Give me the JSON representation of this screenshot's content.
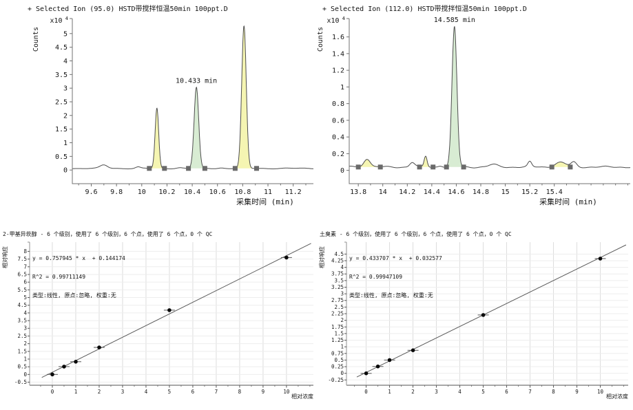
{
  "page": {
    "background": "#ffffff"
  },
  "chart_data": [
    {
      "id": "chromatogram-95",
      "type": "line",
      "subtype": "chromatogram",
      "title": "+ Selected Ion (95.0) HSTD带搅拌恒温50min 100ppt.D",
      "ylabel": "Counts",
      "y_exponent_base": "x10",
      "y_exponent_power": "4",
      "xlabel": "采集时间 (min)",
      "xlim": [
        9.45,
        11.36
      ],
      "ylim": [
        -0.5,
        5.55
      ],
      "x_minor_step": 0.1,
      "yticks": [
        {
          "v": 0,
          "label": "0"
        },
        {
          "v": 0.5,
          "label": "0.5"
        },
        {
          "v": 1,
          "label": "1"
        },
        {
          "v": 1.5,
          "label": "1.5"
        },
        {
          "v": 2,
          "label": "2"
        },
        {
          "v": 2.5,
          "label": "2.5"
        },
        {
          "v": 3,
          "label": "3"
        },
        {
          "v": 3.5,
          "label": "3.5"
        },
        {
          "v": 4,
          "label": "4"
        },
        {
          "v": 4.5,
          "label": "4.5"
        },
        {
          "v": 5,
          "label": "5"
        }
      ],
      "xticks": [
        {
          "v": 9.6,
          "label": "9.6"
        },
        {
          "v": 9.8,
          "label": "9.8"
        },
        {
          "v": 10,
          "label": "10"
        },
        {
          "v": 10.2,
          "label": "10.2"
        },
        {
          "v": 10.4,
          "label": "10.4"
        },
        {
          "v": 10.6,
          "label": "10.6"
        },
        {
          "v": 10.8,
          "label": "10.8"
        },
        {
          "v": 11,
          "label": "11"
        },
        {
          "v": 11.2,
          "label": "11.2"
        }
      ],
      "baseline": 0.06,
      "noise": [
        {
          "a": 0.012,
          "f": 2.6,
          "p": 0.7
        },
        {
          "a": 0.007,
          "f": 6.1,
          "p": 2.3
        }
      ],
      "bumps": [
        {
          "t": 9.7,
          "h": 0.12,
          "s": 0.028
        },
        {
          "t": 9.97,
          "h": 0.05,
          "s": 0.018
        },
        {
          "t": 10.3,
          "h": 0.025,
          "s": 0.025
        },
        {
          "t": 10.63,
          "h": 0.02,
          "s": 0.02
        }
      ],
      "peaks": [
        {
          "rt": 10.12,
          "height": 2.2,
          "sigma": 0.014,
          "start": 10.06,
          "end": 10.18,
          "fill": "#f5f5b2",
          "label": null
        },
        {
          "rt": 10.433,
          "height": 2.96,
          "sigma": 0.018,
          "start": 10.37,
          "end": 10.5,
          "fill": "#d8ecd3",
          "label": "10.433 min"
        },
        {
          "rt": 10.81,
          "height": 5.2,
          "sigma": 0.018,
          "start": 10.74,
          "end": 10.91,
          "fill": "#f5f5b2",
          "label": null
        }
      ],
      "colors": {
        "trace": "#4d4d4d",
        "marker": "#6a6a6a",
        "axis": "#707070",
        "yellow_fill": "#f5f5b2",
        "green_fill": "#d8ecd3"
      }
    },
    {
      "id": "chromatogram-112",
      "type": "line",
      "subtype": "chromatogram",
      "title": "+ Selected Ion (112.0) HSTD带搅拌恒温50min 100ppt.D",
      "ylabel": "Counts",
      "y_exponent_base": "x10",
      "y_exponent_power": "4",
      "xlabel": "采集时间 (min)",
      "xlim": [
        13.726,
        16.02
      ],
      "ylim": [
        -0.16,
        1.82
      ],
      "x_minor_step": 0.1,
      "yticks": [
        {
          "v": 0,
          "label": "0"
        },
        {
          "v": 0.2,
          "label": "0.2"
        },
        {
          "v": 0.4,
          "label": "0.4"
        },
        {
          "v": 0.6,
          "label": "0.6"
        },
        {
          "v": 0.8,
          "label": "0.8"
        },
        {
          "v": 1,
          "label": "1"
        },
        {
          "v": 1.2,
          "label": "1.2"
        },
        {
          "v": 1.4,
          "label": "1.4"
        },
        {
          "v": 1.6,
          "label": "1.6"
        }
      ],
      "xticks": [
        {
          "v": 13.8,
          "label": "13.8"
        },
        {
          "v": 14,
          "label": "14"
        },
        {
          "v": 14.2,
          "label": "14.2"
        },
        {
          "v": 14.4,
          "label": "14.4"
        },
        {
          "v": 14.6,
          "label": "14.6"
        },
        {
          "v": 14.8,
          "label": "14.8"
        },
        {
          "v": 15,
          "label": "15"
        },
        {
          "v": 15.2,
          "label": "15.2"
        },
        {
          "v": 15.4,
          "label": "15.4"
        }
      ],
      "baseline": 0.04,
      "noise": [
        {
          "a": 0.007,
          "f": 3.3,
          "p": 0.4
        },
        {
          "a": 0.004,
          "f": 7.9,
          "p": 1.8
        }
      ],
      "bumps": [
        {
          "t": 13.74,
          "h": 0.01,
          "s": 0.02
        },
        {
          "t": 14.24,
          "h": 0.055,
          "s": 0.02
        },
        {
          "t": 14.47,
          "h": 0.018,
          "s": 0.018
        },
        {
          "t": 14.9,
          "h": 0.028,
          "s": 0.035
        },
        {
          "t": 15.2,
          "h": 0.06,
          "s": 0.015
        },
        {
          "t": 15.56,
          "h": 0.055,
          "s": 0.022
        }
      ],
      "peaks": [
        {
          "rt": 13.87,
          "height": 0.1,
          "sigma": 0.026,
          "start": 13.8,
          "end": 13.98,
          "fill": "#f5f5b2",
          "label": null
        },
        {
          "rt": 14.35,
          "height": 0.13,
          "sigma": 0.012,
          "start": 14.3,
          "end": 14.41,
          "fill": "#f5f5b2",
          "label": null
        },
        {
          "rt": 14.585,
          "height": 1.68,
          "sigma": 0.02,
          "start": 14.52,
          "end": 14.66,
          "fill": "#d8ecd3",
          "label": "14.585 min"
        },
        {
          "rt": 15.45,
          "height": 0.055,
          "sigma": 0.045,
          "start": 15.38,
          "end": 15.53,
          "fill": "#f5f5b2",
          "label": null
        }
      ],
      "colors": {
        "trace": "#4d4d4d",
        "marker": "#6a6a6a",
        "axis": "#707070",
        "yellow_fill": "#f5f5b2",
        "green_fill": "#d8ecd3"
      }
    },
    {
      "id": "calibration-2mib",
      "type": "scatter",
      "title": "2-甲基异莰醇 - 6 个级别，使用了 6 个级别，6 个点，使用了 6 个点，0 个 QC",
      "fit_equation": "y = 0.757945 * x  + 0.144174",
      "fit_r2": "R^2 = 0.99711149",
      "fit_type": "类型:线性, 原点:忽略, 权重:无",
      "slope": 0.757945,
      "intercept": 0.144174,
      "xlabel": "相对浓度",
      "ylabel": "相对响应",
      "xlim": [
        -0.97,
        11.15
      ],
      "ylim": [
        -0.7,
        8.6
      ],
      "x_minor_step": 0.5,
      "line_x": [
        -0.45,
        11.05
      ],
      "yticks": [
        {
          "v": -0.5,
          "label": "-0.5"
        },
        {
          "v": 0,
          "label": "0"
        },
        {
          "v": 0.5,
          "label": "0.5"
        },
        {
          "v": 1,
          "label": "1"
        },
        {
          "v": 1.5,
          "label": "1.5"
        },
        {
          "v": 2,
          "label": "2"
        },
        {
          "v": 2.5,
          "label": "2.5"
        },
        {
          "v": 3,
          "label": "3"
        },
        {
          "v": 3.5,
          "label": "3.5"
        },
        {
          "v": 4,
          "label": "4"
        },
        {
          "v": 4.5,
          "label": "4.5"
        },
        {
          "v": 5,
          "label": "5"
        },
        {
          "v": 5.5,
          "label": "5.5"
        },
        {
          "v": 6,
          "label": "6"
        },
        {
          "v": 6.5,
          "label": "6.5"
        },
        {
          "v": 7,
          "label": "7"
        },
        {
          "v": 7.5,
          "label": "7.5"
        },
        {
          "v": 8,
          "label": "8"
        }
      ],
      "xticks": [
        {
          "v": 0,
          "label": "0"
        },
        {
          "v": 1,
          "label": "1"
        },
        {
          "v": 2,
          "label": "2"
        },
        {
          "v": 3,
          "label": "3"
        },
        {
          "v": 4,
          "label": "4"
        },
        {
          "v": 5,
          "label": "5"
        },
        {
          "v": 6,
          "label": "6"
        },
        {
          "v": 7,
          "label": "7"
        },
        {
          "v": 8,
          "label": "8"
        },
        {
          "v": 9,
          "label": "9"
        },
        {
          "v": 10,
          "label": "10"
        }
      ],
      "points": [
        [
          0,
          0.0
        ],
        [
          0.5,
          0.51
        ],
        [
          1,
          0.83
        ],
        [
          2,
          1.76
        ],
        [
          5,
          4.18
        ],
        [
          10,
          7.6
        ]
      ],
      "colors": {
        "line": "#5a5a5a",
        "point": "#0a0a0a",
        "grid_v": "#dcdcdc",
        "grid_h": "#ededed"
      }
    },
    {
      "id": "calibration-geosmin",
      "type": "scatter",
      "title": "土臭素 - 6 个级别，使用了 6 个级别，6 个点，使用了 6 个点，0 个 QC",
      "fit_equation": "y = 0.433707 * x  + 0.032577",
      "fit_r2": "R^2 = 0.99947109",
      "fit_type": "类型:线性, 原点:忽略, 权重:无",
      "slope": 0.433707,
      "intercept": 0.032577,
      "xlabel": "相对浓度",
      "ylabel": "相对响应",
      "xlim": [
        -0.84,
        11.19
      ],
      "ylim": [
        -0.45,
        4.95
      ],
      "x_minor_step": 0.5,
      "line_x": [
        -0.4,
        11.1
      ],
      "yticks": [
        {
          "v": -0.25,
          "label": "-0.25"
        },
        {
          "v": 0,
          "label": "0"
        },
        {
          "v": 0.25,
          "label": "0.25"
        },
        {
          "v": 0.5,
          "label": "0.5"
        },
        {
          "v": 0.75,
          "label": "0.75"
        },
        {
          "v": 1,
          "label": "1"
        },
        {
          "v": 1.25,
          "label": "1.25"
        },
        {
          "v": 1.5,
          "label": "1.5"
        },
        {
          "v": 1.75,
          "label": "1.75"
        },
        {
          "v": 2,
          "label": "2"
        },
        {
          "v": 2.25,
          "label": "2.25"
        },
        {
          "v": 2.5,
          "label": "2.5"
        },
        {
          "v": 2.75,
          "label": "2.75"
        },
        {
          "v": 3,
          "label": "3"
        },
        {
          "v": 3.25,
          "label": "3.25"
        },
        {
          "v": 3.5,
          "label": "3.5"
        },
        {
          "v": 3.75,
          "label": "3.75"
        },
        {
          "v": 4,
          "label": "4"
        },
        {
          "v": 4.25,
          "label": "4.25"
        },
        {
          "v": 4.5,
          "label": "4.5"
        }
      ],
      "xticks": [
        {
          "v": 0,
          "label": "0"
        },
        {
          "v": 1,
          "label": "1"
        },
        {
          "v": 2,
          "label": "2"
        },
        {
          "v": 3,
          "label": "3"
        },
        {
          "v": 4,
          "label": "4"
        },
        {
          "v": 5,
          "label": "5"
        },
        {
          "v": 6,
          "label": "6"
        },
        {
          "v": 7,
          "label": "7"
        },
        {
          "v": 8,
          "label": "8"
        },
        {
          "v": 9,
          "label": "9"
        },
        {
          "v": 10,
          "label": "10"
        }
      ],
      "points": [
        [
          0,
          0.0
        ],
        [
          0.5,
          0.26
        ],
        [
          1,
          0.5
        ],
        [
          2,
          0.87
        ],
        [
          5,
          2.2
        ],
        [
          10,
          4.33
        ]
      ],
      "colors": {
        "line": "#5a5a5a",
        "point": "#0a0a0a",
        "grid_v": "#dcdcdc",
        "grid_h": "#ededed"
      }
    }
  ]
}
